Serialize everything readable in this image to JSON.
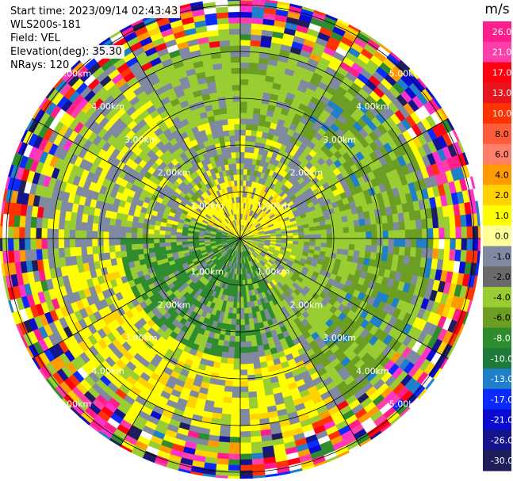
{
  "info": {
    "start_time": "Start time: 2023/09/14 02:43:43",
    "instrument": "WLS200s-181",
    "field": "Field: VEL",
    "elevation": "Elevation(deg): 35.30",
    "nrays": "NRays: 120"
  },
  "chart_data": {
    "type": "heatmap",
    "projection": "polar-ppi",
    "title": "",
    "field": "VEL",
    "n_rays": 120,
    "range_rings_km": [
      1.0,
      2.0,
      3.0,
      4.0,
      5.0
    ],
    "range_ring_labels": [
      "1.00km",
      "2.00km",
      "3.00km",
      "4.00km",
      "5.00km"
    ],
    "colorbar": {
      "unit": "m/s",
      "ticks": [
        "26.0",
        "21.0",
        "17.0",
        "13.0",
        "10.0",
        "8.0",
        "6.0",
        "4.0",
        "2.0",
        "1.0",
        "0.0",
        "-1.0",
        "-2.0",
        "-4.0",
        "-6.0",
        "-8.0",
        "-10.0",
        "-13.0",
        "-17.0",
        "-21.0",
        "-26.0",
        "-30.0"
      ],
      "colors": [
        "#ff1e8c",
        "#ff3fa9",
        "#ff0010",
        "#e8141e",
        "#ff3300",
        "#ff5a3a",
        "#ff7f6a",
        "#ff9a00",
        "#ffd200",
        "#ffff00",
        "#ffff9a",
        "#7f8aa0",
        "#6a6a6a",
        "#9acd32",
        "#6b9e23",
        "#2e8b2e",
        "#1e7a3a",
        "#1f7fc8",
        "#0a2aff",
        "#0a0ad0",
        "#14148c",
        "#1e1e5a"
      ]
    },
    "annotations": []
  }
}
